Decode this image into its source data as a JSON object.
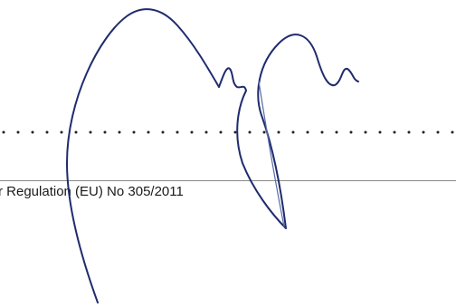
{
  "document": {
    "regulation_text": "r Regulation (EU) No 305/2011"
  },
  "signature": {
    "ink_color": "#1f2b6e",
    "kind": "handwritten-signature"
  },
  "rule_color": "#8a8a8a"
}
